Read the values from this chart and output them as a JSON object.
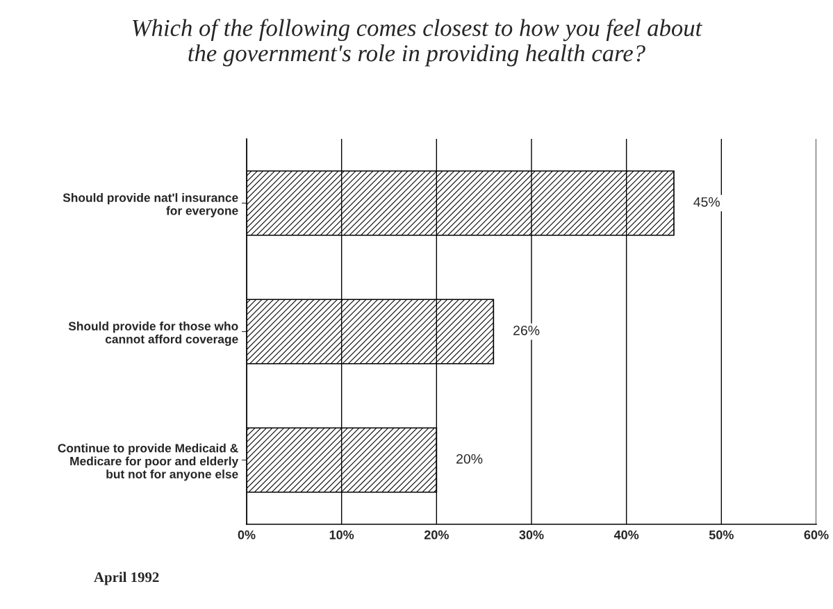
{
  "chart_data": {
    "type": "bar",
    "orientation": "horizontal",
    "title": "Which of the following comes closest to how you feel about\nthe government's role in providing health care?",
    "categories": [
      "Should provide nat'l insurance\nfor everyone",
      "Should provide for those who\ncannot afford coverage",
      "Continue to provide Medicaid &\nMedicare for poor and elderly\nbut not for anyone else"
    ],
    "values": [
      45,
      26,
      20
    ],
    "color": "#000000",
    "value_labels": [
      "45%",
      "26%",
      "20%"
    ],
    "xlim": [
      0,
      60
    ],
    "xticks": [
      {
        "value": 0,
        "label": "0%"
      },
      {
        "value": 10,
        "label": "10%"
      },
      {
        "value": 20,
        "label": "20%"
      },
      {
        "value": 30,
        "label": "30%"
      },
      {
        "value": 40,
        "label": "40%"
      },
      {
        "value": 50,
        "label": "50%"
      },
      {
        "value": 60,
        "label": "60%"
      }
    ],
    "grid": "x",
    "annotations": [
      "April 1992"
    ]
  }
}
